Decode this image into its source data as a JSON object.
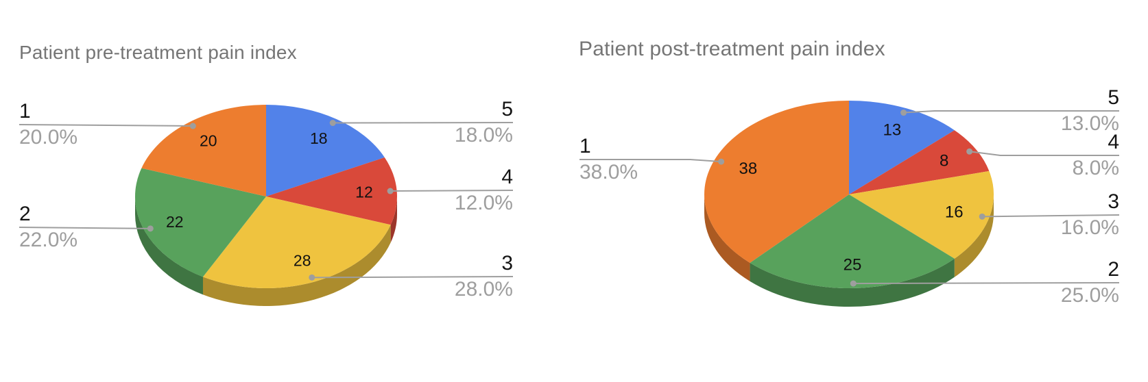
{
  "page": {
    "background_color": "#ffffff"
  },
  "theme": {
    "title_color": "#757575",
    "category_label_color": "#141414",
    "percent_label_color": "#9e9e9e",
    "callout_line_color": "#9e9e9e",
    "slice_value_color": "#111111"
  },
  "chart_data": [
    {
      "type": "pie",
      "style": "3d",
      "title": "Patient pre-treatment pain index",
      "legend": "labeled-callouts",
      "slice_order": "clockwise-from-top",
      "slices": [
        {
          "label": "5",
          "value": 18,
          "pct": "18.0%",
          "color": "#5282e9"
        },
        {
          "label": "4",
          "value": 12,
          "pct": "12.0%",
          "color": "#d9493a"
        },
        {
          "label": "3",
          "value": 28,
          "pct": "28.0%",
          "color": "#efc33f"
        },
        {
          "label": "2",
          "value": 22,
          "pct": "22.0%",
          "color": "#58a25c"
        },
        {
          "label": "1",
          "value": 20,
          "pct": "20.0%",
          "color": "#ed7d2f"
        }
      ]
    },
    {
      "type": "pie",
      "style": "3d",
      "title": "Patient post-treatment pain index",
      "legend": "labeled-callouts",
      "slice_order": "clockwise-from-top",
      "slices": [
        {
          "label": "5",
          "value": 13,
          "pct": "13.0%",
          "color": "#5282e9"
        },
        {
          "label": "4",
          "value": 8,
          "pct": "8.0%",
          "color": "#d9493a"
        },
        {
          "label": "3",
          "value": 16,
          "pct": "16.0%",
          "color": "#efc33f"
        },
        {
          "label": "2",
          "value": 25,
          "pct": "25.0%",
          "color": "#58a25c"
        },
        {
          "label": "1",
          "value": 38,
          "pct": "38.0%",
          "color": "#ed7d2f"
        }
      ]
    }
  ]
}
